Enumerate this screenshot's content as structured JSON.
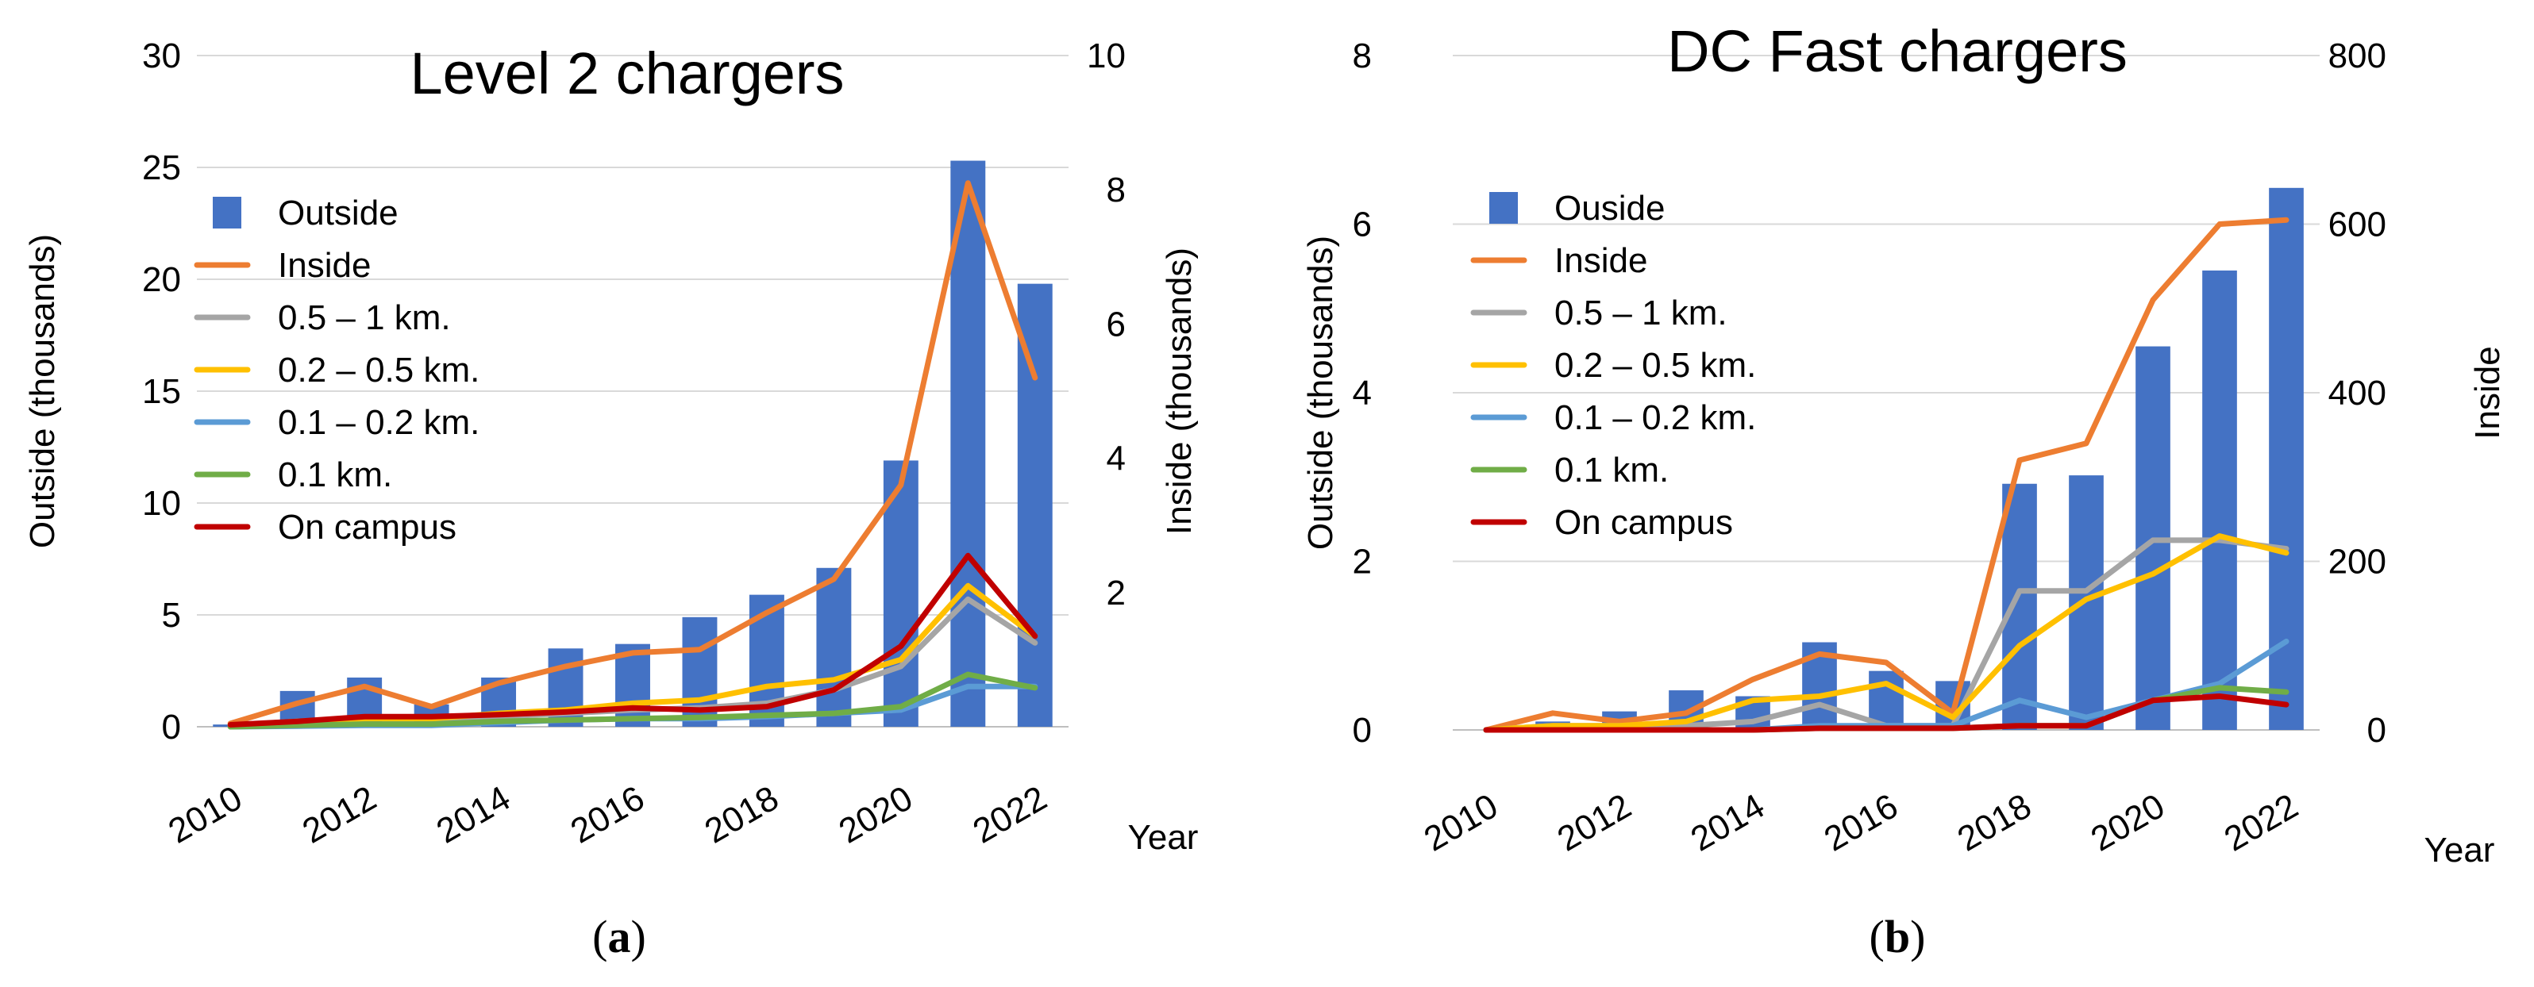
{
  "chart_data": [
    {
      "type": "bar",
      "title": "Level 2 chargers",
      "caption_letter": "a",
      "xlabel": "Year",
      "ylabel": "Outside (thousands)",
      "y2label": "Inside (thousands)",
      "ylim": [
        0,
        30
      ],
      "y2lim": [
        0,
        10
      ],
      "yticks": [
        "0",
        "5",
        "10",
        "15",
        "20",
        "25",
        "30"
      ],
      "y2ticks": [
        "2",
        "4",
        "6",
        "8",
        "10"
      ],
      "x": [
        2010,
        2011,
        2012,
        2013,
        2014,
        2015,
        2016,
        2017,
        2018,
        2019,
        2020,
        2021,
        2022
      ],
      "xticks": [
        "2010",
        "2012",
        "2014",
        "2016",
        "2018",
        "2020",
        "2022"
      ],
      "legend_position": "upper-left",
      "bar_series": {
        "name": "Outside",
        "color": "#4472C4",
        "axis": "left",
        "values": [
          0.1,
          1.6,
          2.2,
          1.0,
          2.2,
          3.5,
          3.7,
          4.9,
          5.9,
          7.1,
          11.9,
          25.3,
          19.8
        ]
      },
      "line_series": [
        {
          "name": "Inside",
          "color": "#ED7D31",
          "axis": "right",
          "values": [
            0.05,
            0.35,
            0.6,
            0.3,
            0.65,
            0.9,
            1.1,
            1.15,
            1.7,
            2.2,
            3.6,
            8.1,
            5.2
          ]
        },
        {
          "name": "0.5 – 1 km.",
          "color": "#A5A5A5",
          "axis": "right",
          "values": [
            0.02,
            0.08,
            0.12,
            0.12,
            0.15,
            0.2,
            0.25,
            0.28,
            0.35,
            0.55,
            0.9,
            1.9,
            1.25
          ]
        },
        {
          "name": "0.2 – 0.5 km.",
          "color": "#FFC000",
          "axis": "right",
          "values": [
            0.02,
            0.08,
            0.12,
            0.12,
            0.2,
            0.25,
            0.35,
            0.4,
            0.6,
            0.7,
            1.0,
            2.1,
            1.35
          ]
        },
        {
          "name": "0.1 – 0.2 km.",
          "color": "#5B9BD5",
          "axis": "right",
          "values": [
            0.0,
            0.01,
            0.02,
            0.02,
            0.06,
            0.1,
            0.12,
            0.12,
            0.15,
            0.2,
            0.25,
            0.6,
            0.6
          ]
        },
        {
          "name": "0.1 km.",
          "color": "#70AD47",
          "axis": "right",
          "values": [
            0.0,
            0.02,
            0.04,
            0.04,
            0.08,
            0.1,
            0.12,
            0.14,
            0.17,
            0.2,
            0.3,
            0.78,
            0.58
          ]
        },
        {
          "name": "On campus",
          "color": "#C00000",
          "axis": "right",
          "values": [
            0.03,
            0.08,
            0.15,
            0.15,
            0.18,
            0.22,
            0.28,
            0.25,
            0.3,
            0.55,
            1.2,
            2.55,
            1.35
          ]
        }
      ]
    },
    {
      "type": "bar",
      "title": "DC Fast chargers",
      "caption_letter": "b",
      "xlabel": "Year",
      "ylabel": "Outside (thousands)",
      "y2label": "Inside",
      "ylim": [
        0,
        8
      ],
      "y2lim": [
        0,
        800
      ],
      "yticks": [
        "0",
        "2",
        "4",
        "6",
        "8"
      ],
      "y2ticks": [
        "0",
        "200",
        "400",
        "600",
        "800"
      ],
      "x": [
        2010,
        2011,
        2012,
        2013,
        2014,
        2015,
        2016,
        2017,
        2018,
        2019,
        2020,
        2021,
        2022
      ],
      "xticks": [
        "2010",
        "2012",
        "2014",
        "2016",
        "2018",
        "2020",
        "2022"
      ],
      "legend_position": "upper-left",
      "bar_series": {
        "name": "Ouside",
        "color": "#4472C4",
        "axis": "left",
        "values": [
          0.0,
          0.1,
          0.22,
          0.47,
          0.4,
          1.04,
          0.7,
          0.58,
          2.92,
          3.02,
          4.55,
          5.45,
          6.43
        ]
      },
      "line_series": [
        {
          "name": "Inside",
          "color": "#ED7D31",
          "axis": "right",
          "values": [
            0,
            20,
            10,
            20,
            60,
            90,
            80,
            20,
            320,
            340,
            510,
            600,
            605
          ]
        },
        {
          "name": "0.5 – 1 km.",
          "color": "#A5A5A5",
          "axis": "right",
          "values": [
            0,
            5,
            5,
            5,
            10,
            30,
            5,
            5,
            165,
            165,
            225,
            225,
            215
          ]
        },
        {
          "name": "0.2 – 0.5 km.",
          "color": "#FFC000",
          "axis": "right",
          "values": [
            0,
            5,
            5,
            10,
            35,
            40,
            55,
            15,
            100,
            155,
            185,
            230,
            210
          ]
        },
        {
          "name": "0.1 – 0.2 km.",
          "color": "#5B9BD5",
          "axis": "right",
          "values": [
            0,
            0,
            0,
            0,
            0,
            5,
            5,
            5,
            35,
            15,
            35,
            55,
            105
          ]
        },
        {
          "name": "0.1 km.",
          "color": "#70AD47",
          "axis": "right",
          "values": [
            0,
            0,
            0,
            0,
            0,
            2,
            2,
            2,
            5,
            5,
            35,
            50,
            45
          ]
        },
        {
          "name": "On campus",
          "color": "#C00000",
          "axis": "right",
          "values": [
            0,
            0,
            0,
            0,
            0,
            2,
            2,
            2,
            5,
            5,
            35,
            40,
            30
          ]
        }
      ]
    }
  ]
}
